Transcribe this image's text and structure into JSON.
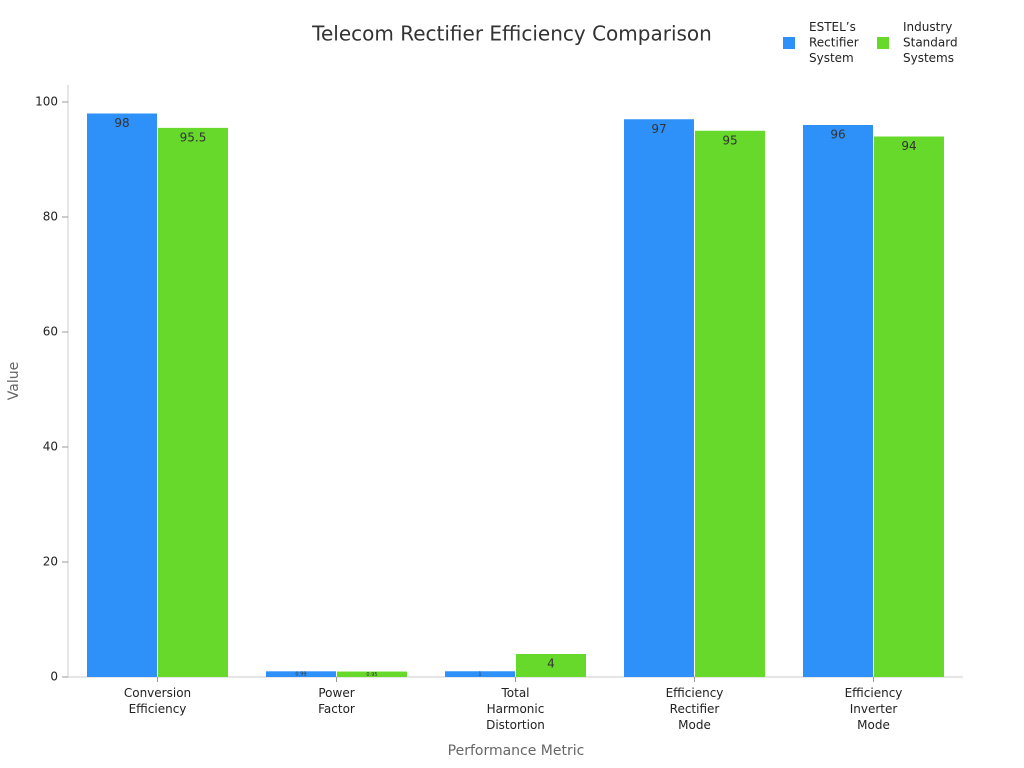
{
  "chart_data": {
    "type": "bar",
    "title": "Telecom Rectifier Efficiency Comparison",
    "x_label": "Performance Metric",
    "y_label": "Value",
    "categories": [
      "Conversion Efficiency",
      "Power Factor",
      "Total Harmonic Distortion",
      "Efficiency Rectifier Mode",
      "Efficiency Inverter Mode"
    ],
    "series": [
      {
        "name": "ESTEL’s Rectifier System",
        "color": "#2e91fa",
        "values": [
          98,
          0.99,
          1,
          97,
          96
        ]
      },
      {
        "name": "Industry Standard Systems",
        "color": "#66d92a",
        "values": [
          95.5,
          0.95,
          4,
          95,
          94
        ]
      }
    ],
    "ylim": [
      0,
      103
    ],
    "yticks": [
      0,
      20,
      40,
      60,
      80,
      100
    ],
    "grid": false,
    "legend": "upper right"
  }
}
